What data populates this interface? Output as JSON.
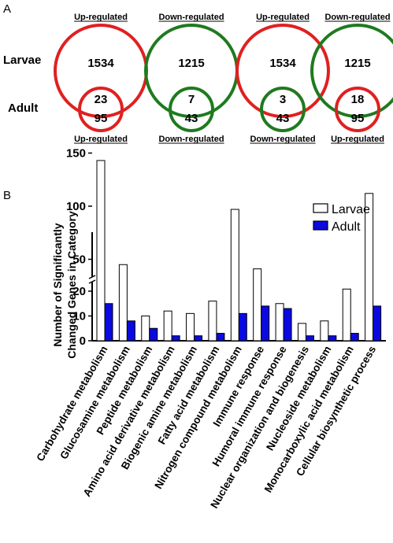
{
  "panel_a": {
    "label": "A",
    "row_labels": {
      "larvae": "Larvae",
      "adult": "Adult"
    },
    "groups": [
      {
        "top_label": "Up-regulated",
        "bottom_label": "Up-regulated",
        "larvae_only": "1534",
        "overlap": "23",
        "adult_only": "95",
        "larvae_color": "#e02020",
        "adult_color": "#e02020"
      },
      {
        "top_label": "Down-regulated",
        "bottom_label": "Down-regulated",
        "larvae_only": "1215",
        "overlap": "7",
        "adult_only": "43",
        "larvae_color": "#1f7a1f",
        "adult_color": "#1f7a1f"
      },
      {
        "top_label": "Up-regulated",
        "bottom_label": "Down-regulated",
        "larvae_only": "1534",
        "overlap": "3",
        "adult_only": "43",
        "larvae_color": "#e02020",
        "adult_color": "#1f7a1f"
      },
      {
        "top_label": "Down-regulated",
        "bottom_label": "Up-regulated",
        "larvae_only": "1215",
        "overlap": "18",
        "adult_only": "95",
        "larvae_color": "#1f7a1f",
        "adult_color": "#e02020"
      }
    ]
  },
  "panel_b": {
    "label": "B",
    "chart_data": {
      "type": "bar",
      "ylabel_line1": "Number of Significantly",
      "ylabel_line2": "Changed Genes in Category",
      "y_axis_break": true,
      "ylim": [
        0,
        150
      ],
      "yticks": [
        "0",
        "10",
        "20",
        "50",
        "100",
        "150"
      ],
      "legend_position": "top-right",
      "categories": [
        "Carbohydrate metabolism",
        "Glucosamine metabolism",
        "Peptide metabolism",
        "Amino acid derivative metabolism",
        "Biogenic amine metabolism",
        "Fatty acid metabolism",
        "Nitrogen compound metabolism",
        "Immune response",
        "Humoral immune response",
        "Nuclear organization and biogenesis",
        "Nucleoside metabolism",
        "Monocarboxylic acid metabolism",
        "Cellular biosynthetic process"
      ],
      "series": [
        {
          "name": "Larvae",
          "color": "#ffffff",
          "values": [
            143,
            45,
            10,
            12,
            11,
            16,
            97,
            41,
            15,
            7,
            8,
            22,
            112
          ]
        },
        {
          "name": "Adult",
          "color": "#0a0ae0",
          "values": [
            15,
            8,
            5,
            2,
            2,
            3,
            11,
            14,
            13,
            2,
            2,
            3,
            14
          ]
        }
      ]
    }
  }
}
